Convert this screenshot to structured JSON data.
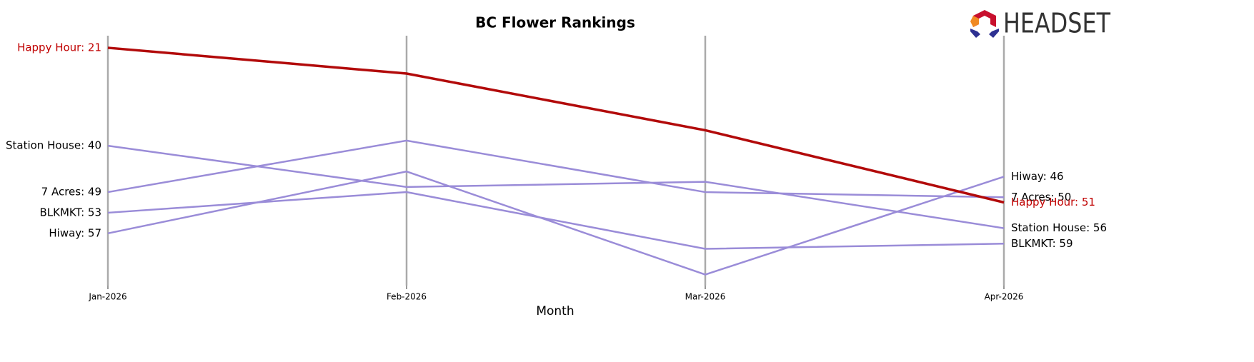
{
  "chart_data": {
    "type": "line",
    "title": "BC Flower Rankings",
    "x_label": "Month",
    "logo_text": "HEADSET",
    "categories": [
      "Jan-2026",
      "Feb-2026",
      "Mar-2026",
      "Apr-2026"
    ],
    "ylim": [
      19,
      67
    ],
    "invert_y": true,
    "series": [
      {
        "name": "Happy Hour",
        "color": "#b20a0a",
        "values": [
          21,
          26,
          37,
          51
        ],
        "value_labels": [
          "Happy Hour: 21",
          null,
          null,
          "Happy Hour: 51"
        ],
        "label_color": "#c00000"
      },
      {
        "name": "Station House",
        "color": "#9a8cd8",
        "values": [
          40,
          48,
          47,
          56
        ],
        "value_labels": [
          "Station House: 40",
          null,
          null,
          "Station House: 56"
        ],
        "label_color": "#000000"
      },
      {
        "name": "7 Acres",
        "color": "#9a8cd8",
        "values": [
          49,
          39,
          49,
          50
        ],
        "value_labels": [
          "7 Acres: 49",
          null,
          null,
          "7 Acres: 50"
        ],
        "label_color": "#000000"
      },
      {
        "name": "BLKMKT",
        "color": "#9a8cd8",
        "values": [
          53,
          49,
          60,
          59
        ],
        "value_labels": [
          "BLKMKT: 53",
          null,
          null,
          "BLKMKT: 59"
        ],
        "label_color": "#000000"
      },
      {
        "name": "Hiway",
        "color": "#9a8cd8",
        "values": [
          57,
          45,
          65,
          46
        ],
        "value_labels": [
          "Hiway: 57",
          null,
          null,
          "Hiway: 46"
        ],
        "label_color": "#000000"
      }
    ]
  }
}
